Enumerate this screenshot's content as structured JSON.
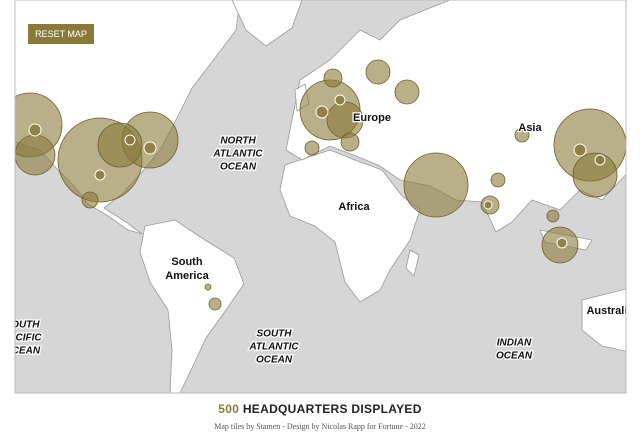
{
  "controls": {
    "reset_button": "RESET MAP"
  },
  "map": {
    "labels": [
      {
        "kind": "ocean",
        "lines": [
          "NORTH",
          "ATLANTIC",
          "OCEAN"
        ]
      },
      {
        "kind": "land",
        "lines": [
          "Africa"
        ]
      },
      {
        "kind": "land",
        "lines": [
          "Asia"
        ]
      },
      {
        "kind": "land",
        "lines": [
          "Europe"
        ]
      },
      {
        "kind": "land",
        "lines": [
          "South",
          "America"
        ]
      },
      {
        "kind": "ocean",
        "lines": [
          "SOUTH",
          "ATLANTIC",
          "OCEAN"
        ]
      },
      {
        "kind": "ocean",
        "lines": [
          "INDIAN",
          "OCEAN"
        ]
      },
      {
        "kind": "ocean",
        "lines": [
          "SOUTH",
          "PACIFIC",
          "OCEAN"
        ]
      },
      {
        "kind": "land",
        "lines": [
          "Australia"
        ]
      }
    ]
  },
  "footer": {
    "count": 500,
    "count_label": "HEADQUARTERS DISPLAYED",
    "credit": "Map tiles by Stamen - Design by Nicolas Rapp for Fortune - 2022"
  }
}
